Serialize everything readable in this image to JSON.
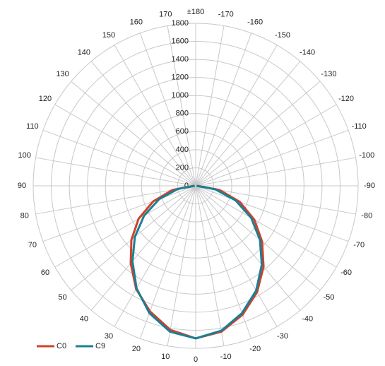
{
  "chart_data": {
    "type": "polar",
    "rlim": [
      0,
      1800
    ],
    "rticks": [
      0,
      200,
      400,
      600,
      800,
      1000,
      1200,
      1400,
      1600,
      1800
    ],
    "angle_ticks": [
      0,
      10,
      20,
      30,
      40,
      50,
      60,
      70,
      80,
      90,
      100,
      110,
      120,
      130,
      140,
      150,
      160,
      170,
      {
        "value": 180,
        "label": "±180"
      },
      -170,
      -160,
      -150,
      -140,
      -130,
      -120,
      -110,
      -100,
      -90,
      -80,
      -70,
      -60,
      -50,
      -40,
      -30,
      -20,
      -10
    ],
    "x": [
      90,
      80,
      70,
      60,
      50,
      40,
      30,
      20,
      10,
      0,
      -10,
      -20,
      -30,
      -40,
      -50,
      -60,
      -70,
      -80,
      -90
    ],
    "series": [
      {
        "name": "C0",
        "color": "#d0412b",
        "values": [
          20,
          260,
          500,
          730,
          930,
          1120,
          1320,
          1480,
          1620,
          1690,
          1640,
          1520,
          1360,
          1170,
          960,
          750,
          520,
          270,
          20
        ]
      },
      {
        "name": "C9",
        "color": "#1a7f95",
        "values": [
          10,
          200,
          430,
          660,
          880,
          1090,
          1310,
          1500,
          1640,
          1690,
          1630,
          1500,
          1340,
          1140,
          930,
          710,
          470,
          220,
          10
        ]
      }
    ],
    "legend": "bottom-left",
    "grid": true
  }
}
